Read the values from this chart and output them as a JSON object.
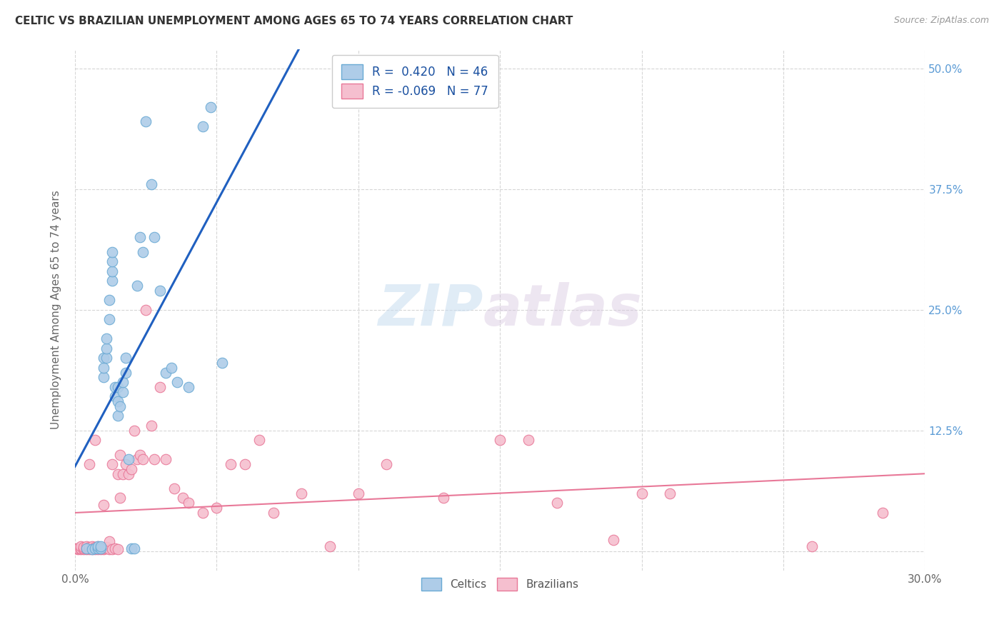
{
  "title": "CELTIC VS BRAZILIAN UNEMPLOYMENT AMONG AGES 65 TO 74 YEARS CORRELATION CHART",
  "source": "Source: ZipAtlas.com",
  "ylabel": "Unemployment Among Ages 65 to 74 years",
  "xlim": [
    0.0,
    0.3
  ],
  "ylim": [
    -0.02,
    0.52
  ],
  "xticks": [
    0.0,
    0.05,
    0.1,
    0.15,
    0.2,
    0.25,
    0.3
  ],
  "yticks": [
    0.0,
    0.125,
    0.25,
    0.375,
    0.5
  ],
  "right_ytick_color": "#5b9bd5",
  "grid_color": "#cccccc",
  "background_color": "#ffffff",
  "watermark_zip": "ZIP",
  "watermark_atlas": "atlas",
  "legend_r_celtic": " 0.420",
  "legend_n_celtic": "46",
  "legend_r_brazil": "-0.069",
  "legend_n_brazil": "77",
  "celtic_color": "#aecce8",
  "celtic_edge_color": "#6aaad4",
  "brazil_color": "#f5bfcf",
  "brazil_edge_color": "#e87898",
  "trendline_celtic_color": "#2060c0",
  "trendline_brazil_color": "#e87898",
  "trendline_dashed_color": "#bbbbbb",
  "celtic_x": [
    0.004,
    0.006,
    0.007,
    0.008,
    0.008,
    0.009,
    0.009,
    0.01,
    0.01,
    0.01,
    0.011,
    0.011,
    0.011,
    0.012,
    0.012,
    0.013,
    0.013,
    0.013,
    0.013,
    0.014,
    0.014,
    0.015,
    0.015,
    0.015,
    0.016,
    0.017,
    0.017,
    0.018,
    0.018,
    0.019,
    0.02,
    0.021,
    0.022,
    0.023,
    0.024,
    0.025,
    0.027,
    0.028,
    0.03,
    0.032,
    0.034,
    0.036,
    0.04,
    0.045,
    0.048,
    0.052
  ],
  "celtic_y": [
    0.003,
    0.002,
    0.003,
    0.003,
    0.005,
    0.003,
    0.005,
    0.18,
    0.19,
    0.2,
    0.2,
    0.21,
    0.22,
    0.24,
    0.26,
    0.28,
    0.29,
    0.3,
    0.31,
    0.16,
    0.17,
    0.14,
    0.155,
    0.17,
    0.15,
    0.165,
    0.175,
    0.185,
    0.2,
    0.095,
    0.003,
    0.003,
    0.275,
    0.325,
    0.31,
    0.445,
    0.38,
    0.325,
    0.27,
    0.185,
    0.19,
    0.175,
    0.17,
    0.44,
    0.46,
    0.195
  ],
  "brazil_x": [
    0.0,
    0.001,
    0.001,
    0.002,
    0.002,
    0.002,
    0.003,
    0.003,
    0.003,
    0.004,
    0.004,
    0.004,
    0.005,
    0.005,
    0.005,
    0.005,
    0.006,
    0.006,
    0.006,
    0.007,
    0.007,
    0.007,
    0.007,
    0.008,
    0.008,
    0.008,
    0.009,
    0.009,
    0.01,
    0.01,
    0.01,
    0.011,
    0.011,
    0.012,
    0.012,
    0.013,
    0.013,
    0.014,
    0.015,
    0.015,
    0.016,
    0.016,
    0.017,
    0.018,
    0.019,
    0.02,
    0.021,
    0.022,
    0.023,
    0.024,
    0.025,
    0.027,
    0.028,
    0.03,
    0.032,
    0.035,
    0.038,
    0.04,
    0.045,
    0.05,
    0.055,
    0.06,
    0.065,
    0.07,
    0.08,
    0.09,
    0.1,
    0.11,
    0.13,
    0.15,
    0.16,
    0.17,
    0.19,
    0.2,
    0.21,
    0.26,
    0.285
  ],
  "brazil_y": [
    0.003,
    0.002,
    0.003,
    0.002,
    0.003,
    0.005,
    0.002,
    0.003,
    0.004,
    0.002,
    0.003,
    0.005,
    0.002,
    0.003,
    0.004,
    0.09,
    0.002,
    0.003,
    0.005,
    0.002,
    0.003,
    0.004,
    0.115,
    0.002,
    0.003,
    0.005,
    0.002,
    0.003,
    0.002,
    0.003,
    0.048,
    0.003,
    0.004,
    0.002,
    0.01,
    0.002,
    0.09,
    0.003,
    0.002,
    0.08,
    0.055,
    0.1,
    0.08,
    0.09,
    0.08,
    0.085,
    0.125,
    0.095,
    0.1,
    0.095,
    0.25,
    0.13,
    0.095,
    0.17,
    0.095,
    0.065,
    0.055,
    0.05,
    0.04,
    0.045,
    0.09,
    0.09,
    0.115,
    0.04,
    0.06,
    0.005,
    0.06,
    0.09,
    0.055,
    0.115,
    0.115,
    0.05,
    0.012,
    0.06,
    0.06,
    0.005,
    0.04
  ]
}
